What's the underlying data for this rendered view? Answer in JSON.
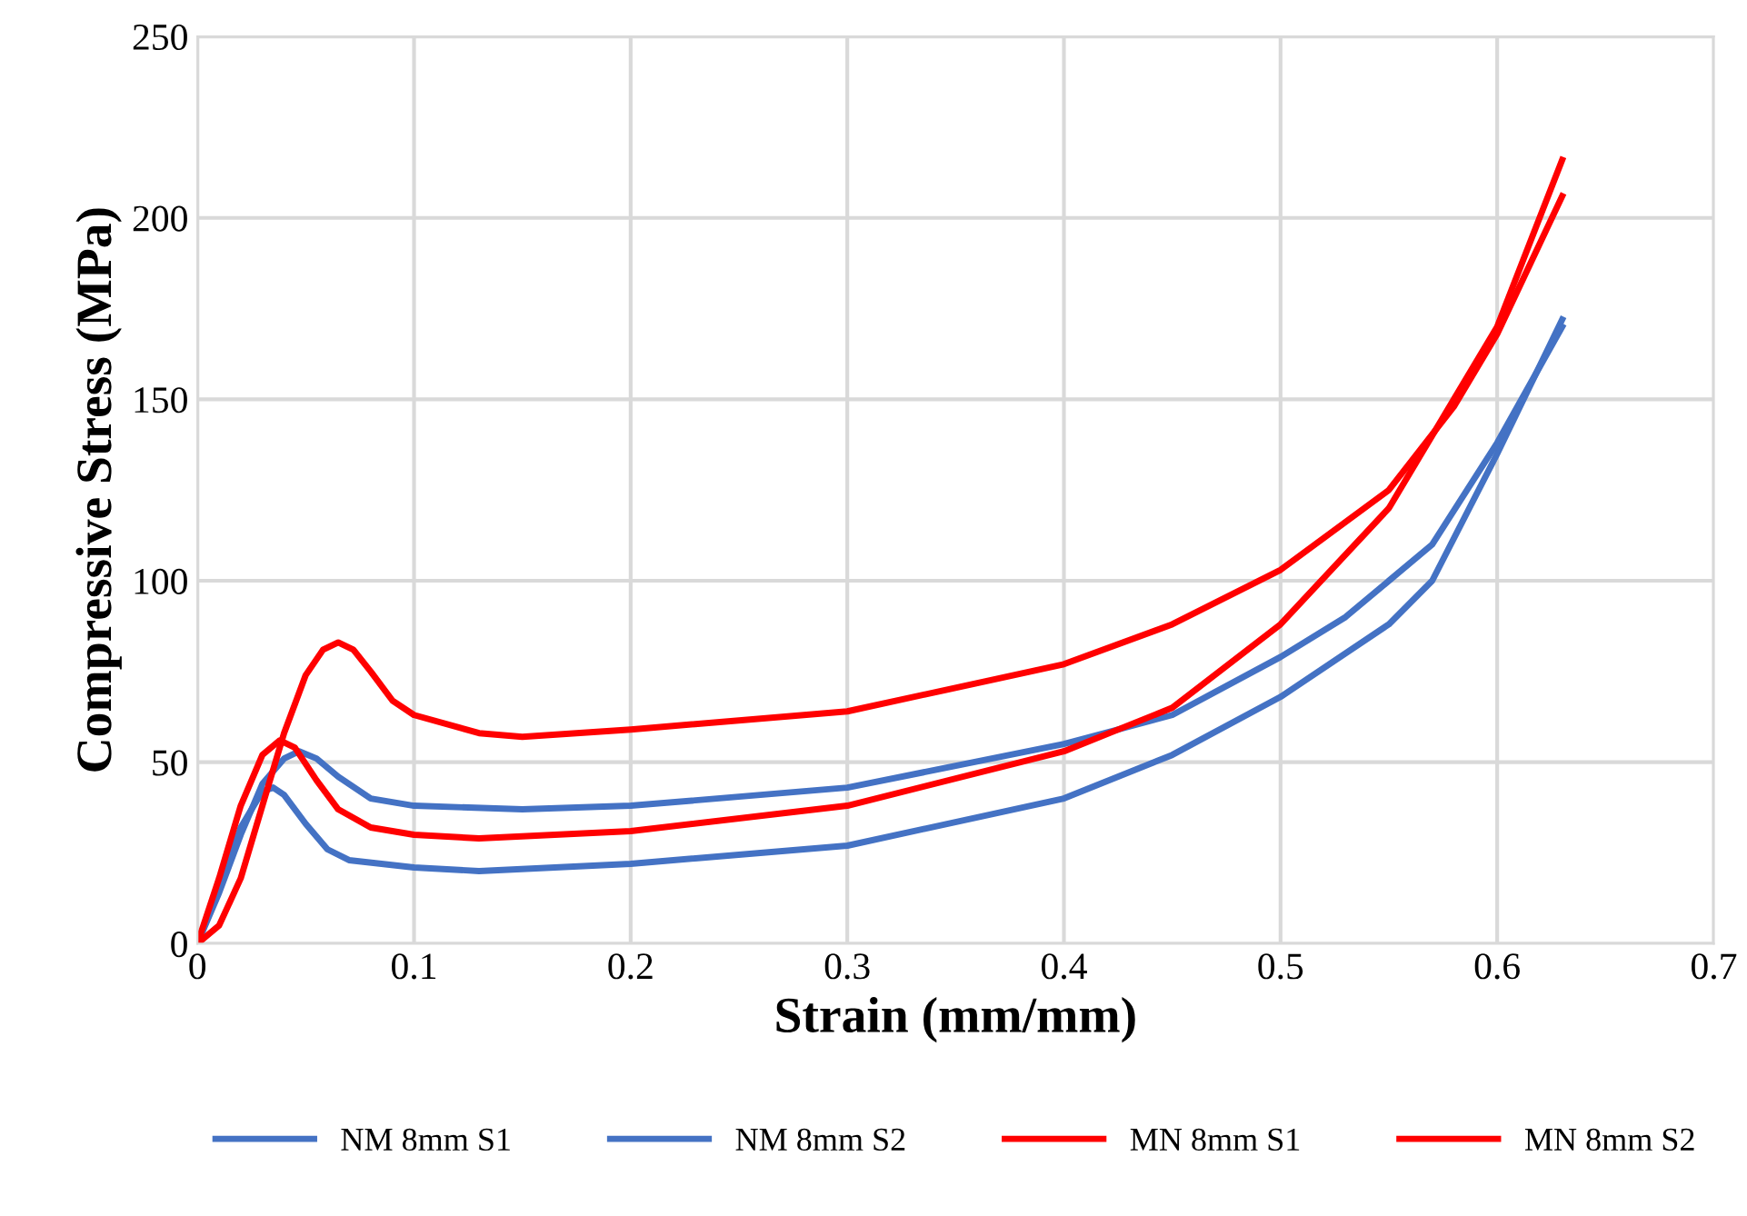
{
  "chart_data": {
    "type": "line",
    "xlabel": "Strain (mm/mm)",
    "ylabel": "Compressive Stress (MPa)",
    "xlim": [
      0,
      0.7
    ],
    "xticks": [
      0,
      0.1,
      0.2,
      0.3,
      0.4,
      0.5,
      0.6,
      0.7
    ],
    "ylim": [
      0,
      250
    ],
    "yticks": [
      0,
      50,
      100,
      150,
      200,
      250
    ],
    "grid": true,
    "legend": "bottom",
    "marker": "none",
    "line_style": "solid",
    "series": [
      {
        "name": "NM 8mm S1",
        "color": "#4472c4",
        "x": [
          0,
          0.01,
          0.02,
          0.03,
          0.035,
          0.04,
          0.05,
          0.06,
          0.07,
          0.1,
          0.13,
          0.2,
          0.3,
          0.4,
          0.45,
          0.5,
          0.55,
          0.57,
          0.6,
          0.63
        ],
        "values": [
          0,
          15,
          32,
          42,
          43,
          41,
          33,
          26,
          23,
          21,
          20,
          22,
          27,
          40,
          52,
          68,
          88,
          100,
          135,
          172
        ]
      },
      {
        "name": "NM 8mm S2",
        "color": "#4472c4",
        "x": [
          0,
          0.01,
          0.02,
          0.03,
          0.04,
          0.047,
          0.055,
          0.065,
          0.08,
          0.1,
          0.15,
          0.2,
          0.3,
          0.4,
          0.45,
          0.5,
          0.53,
          0.57,
          0.6,
          0.63
        ],
        "values": [
          0,
          14,
          30,
          44,
          51,
          53,
          51,
          46,
          40,
          38,
          37,
          38,
          43,
          55,
          63,
          79,
          90,
          110,
          138,
          170
        ]
      },
      {
        "name": "MN 8mm S1",
        "color": "#ff0000",
        "x": [
          0,
          0.01,
          0.02,
          0.03,
          0.038,
          0.045,
          0.055,
          0.065,
          0.08,
          0.1,
          0.13,
          0.2,
          0.3,
          0.4,
          0.45,
          0.5,
          0.55,
          0.58,
          0.6,
          0.63
        ],
        "values": [
          0,
          18,
          38,
          52,
          56,
          54,
          45,
          37,
          32,
          30,
          29,
          31,
          38,
          53,
          65,
          88,
          120,
          150,
          170,
          216
        ]
      },
      {
        "name": "MN 8mm S2",
        "color": "#ff0000",
        "x": [
          0,
          0.01,
          0.02,
          0.03,
          0.04,
          0.05,
          0.058,
          0.065,
          0.072,
          0.08,
          0.09,
          0.1,
          0.13,
          0.15,
          0.2,
          0.3,
          0.4,
          0.45,
          0.5,
          0.55,
          0.58,
          0.6,
          0.63
        ],
        "values": [
          0,
          5,
          18,
          38,
          58,
          74,
          81,
          83,
          81,
          75,
          67,
          63,
          58,
          57,
          59,
          64,
          77,
          88,
          103,
          125,
          148,
          168,
          206
        ]
      }
    ]
  }
}
